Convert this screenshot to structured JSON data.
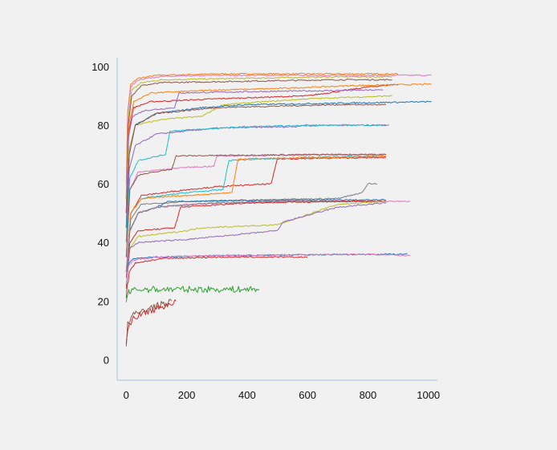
{
  "chart_data": {
    "type": "line",
    "title": "",
    "xlabel": "",
    "ylabel": "",
    "xlim": [
      -30,
      1030
    ],
    "ylim": [
      -7,
      103
    ],
    "x_ticks": [
      "0",
      "200",
      "400",
      "600",
      "800",
      "1000"
    ],
    "x_tick_values": [
      0,
      200,
      400,
      600,
      800,
      1000
    ],
    "y_ticks": [
      "0",
      "20",
      "40",
      "60",
      "80",
      "100"
    ],
    "y_tick_values": [
      0,
      20,
      40,
      60,
      80,
      100
    ],
    "grid": false,
    "legend": "none",
    "axis_color": "#9fc3e6",
    "series_colors": [
      "#1f77b4",
      "#ff7f0e",
      "#2ca02c",
      "#d62728",
      "#9467bd",
      "#8c564b",
      "#e377c2",
      "#7f7f7f",
      "#bcbd22",
      "#17becf"
    ],
    "series": [
      {
        "color": "#ff7f0e",
        "x": [
          0,
          5,
          15,
          40,
          100,
          300,
          600,
          900
        ],
        "y": [
          60,
          85,
          94,
          96,
          97,
          97.5,
          97.5,
          97.5
        ]
      },
      {
        "color": "#e377c2",
        "x": [
          0,
          5,
          15,
          40,
          100,
          300,
          600,
          1010
        ],
        "y": [
          55,
          84,
          93,
          95.5,
          96.5,
          97,
          97,
          97
        ]
      },
      {
        "color": "#bcbd22",
        "x": [
          0,
          6,
          18,
          50,
          120,
          400,
          700,
          880
        ],
        "y": [
          55,
          82,
          92,
          94.5,
          95.5,
          96,
          96.5,
          96.5
        ]
      },
      {
        "color": "#8c564b",
        "x": [
          0,
          6,
          18,
          50,
          120,
          400,
          700,
          880
        ],
        "y": [
          50,
          80,
          90,
          93.5,
          94.5,
          95,
          95.5,
          95.5
        ]
      },
      {
        "color": "#d62728",
        "x": [
          0,
          8,
          25,
          80,
          300,
          600,
          800,
          900
        ],
        "y": [
          50,
          78,
          86,
          88,
          89,
          90,
          93,
          94
        ]
      },
      {
        "color": "#ff7f0e",
        "x": [
          0,
          8,
          25,
          80,
          300,
          500,
          750,
          1010
        ],
        "y": [
          55,
          80,
          88,
          91,
          92,
          92.5,
          93.5,
          94
        ]
      },
      {
        "color": "#9467bd",
        "x": [
          0,
          8,
          20,
          60,
          160,
          175,
          450,
          850
        ],
        "y": [
          50,
          76,
          83,
          85,
          86,
          91,
          91.5,
          92
        ]
      },
      {
        "color": "#bcbd22",
        "x": [
          0,
          10,
          30,
          120,
          250,
          320,
          600,
          880
        ],
        "y": [
          45,
          72,
          80,
          82,
          83,
          87,
          89,
          90
        ]
      },
      {
        "color": "#1f77b4",
        "x": [
          0,
          10,
          30,
          100,
          250,
          400,
          700,
          1010
        ],
        "y": [
          45,
          70,
          80,
          84,
          86,
          87,
          87.5,
          88
        ]
      },
      {
        "color": "#8c564b",
        "x": [
          0,
          10,
          30,
          100,
          300,
          500,
          700,
          860
        ],
        "y": [
          45,
          70,
          80,
          84,
          86,
          86.5,
          87,
          87
        ]
      },
      {
        "color": "#9467bd",
        "x": [
          0,
          10,
          30,
          100,
          300,
          560,
          580,
          870
        ],
        "y": [
          40,
          65,
          73,
          77,
          79,
          79.5,
          80,
          80
        ]
      },
      {
        "color": "#17becf",
        "x": [
          0,
          12,
          40,
          130,
          145,
          400,
          700,
          860
        ],
        "y": [
          40,
          62,
          68,
          70,
          78,
          79.5,
          80,
          80
        ]
      },
      {
        "color": "#e377c2",
        "x": [
          0,
          12,
          40,
          180,
          290,
          300,
          600,
          860
        ],
        "y": [
          35,
          58,
          64,
          65.5,
          66,
          69.5,
          69.8,
          70
        ]
      },
      {
        "color": "#8c564b",
        "x": [
          0,
          12,
          40,
          150,
          165,
          400,
          650,
          860
        ],
        "y": [
          35,
          58,
          63,
          65,
          69.5,
          69.8,
          70,
          70
        ]
      },
      {
        "color": "#d62728",
        "x": [
          0,
          15,
          50,
          200,
          300,
          480,
          500,
          860
        ],
        "y": [
          30,
          50,
          56,
          58,
          59,
          60,
          68.5,
          69
        ]
      },
      {
        "color": "#17becf",
        "x": [
          0,
          15,
          50,
          200,
          320,
          340,
          600,
          860
        ],
        "y": [
          30,
          50,
          55,
          57,
          58,
          68,
          69,
          69.5
        ]
      },
      {
        "color": "#ff7f0e",
        "x": [
          0,
          15,
          50,
          200,
          350,
          370,
          700,
          860
        ],
        "y": [
          30,
          50,
          55,
          56,
          57,
          68.5,
          69,
          69.5
        ]
      },
      {
        "color": "#7f7f7f",
        "x": [
          0,
          15,
          50,
          200,
          700,
          780,
          800,
          830
        ],
        "y": [
          30,
          48,
          53,
          54,
          55,
          57,
          60,
          60
        ]
      },
      {
        "color": "#1f77b4",
        "x": [
          0,
          12,
          40,
          100,
          140,
          400,
          700,
          860
        ],
        "y": [
          30,
          44,
          50,
          52,
          54,
          54.3,
          54.5,
          54.5
        ]
      },
      {
        "color": "#e377c2",
        "x": [
          0,
          12,
          40,
          100,
          200,
          500,
          800,
          940
        ],
        "y": [
          30,
          44,
          50,
          52,
          53,
          54,
          54,
          54
        ]
      },
      {
        "color": "#7f7f7f",
        "x": [
          0,
          12,
          40,
          100,
          300,
          500,
          700,
          860
        ],
        "y": [
          28,
          44,
          50,
          52,
          53.5,
          54,
          54,
          54
        ]
      },
      {
        "color": "#d62728",
        "x": [
          0,
          12,
          40,
          160,
          180,
          400,
          700,
          860
        ],
        "y": [
          25,
          40,
          44,
          45,
          52,
          53.5,
          54,
          54
        ]
      },
      {
        "color": "#bcbd22",
        "x": [
          0,
          12,
          40,
          200,
          250,
          500,
          700,
          860
        ],
        "y": [
          25,
          38,
          42,
          44,
          45,
          46,
          53,
          54
        ]
      },
      {
        "color": "#9467bd",
        "x": [
          0,
          12,
          40,
          200,
          500,
          520,
          700,
          860
        ],
        "y": [
          25,
          38,
          40,
          41,
          44,
          47,
          52,
          53.5
        ]
      },
      {
        "color": "#1f77b4",
        "x": [
          0,
          8,
          25,
          100,
          300,
          600,
          900,
          930
        ],
        "y": [
          25,
          33,
          34.5,
          35,
          35.5,
          35.8,
          36,
          36
        ]
      },
      {
        "color": "#e377c2",
        "x": [
          0,
          8,
          25,
          100,
          300,
          600,
          800,
          940
        ],
        "y": [
          25,
          32,
          34,
          35,
          35.5,
          35.8,
          36,
          35.5
        ]
      },
      {
        "color": "#d62728",
        "x": [
          0,
          10,
          30,
          120,
          300,
          500,
          600
        ],
        "y": [
          22,
          30,
          33,
          34.5,
          35,
          35,
          35
        ]
      },
      {
        "color": "#2ca02c",
        "x": [
          0,
          5,
          15,
          50,
          200,
          440
        ],
        "y": [
          20,
          22.5,
          23.5,
          24,
          24,
          24
        ]
      },
      {
        "color": "#d62728",
        "x": [
          0,
          5,
          20,
          60,
          120,
          165
        ],
        "y": [
          5,
          10,
          14,
          16,
          18,
          20
        ]
      },
      {
        "color": "#8c564b",
        "x": [
          0,
          5,
          20,
          60,
          120,
          150
        ],
        "y": [
          5,
          12,
          15,
          17,
          19,
          20
        ]
      }
    ]
  }
}
